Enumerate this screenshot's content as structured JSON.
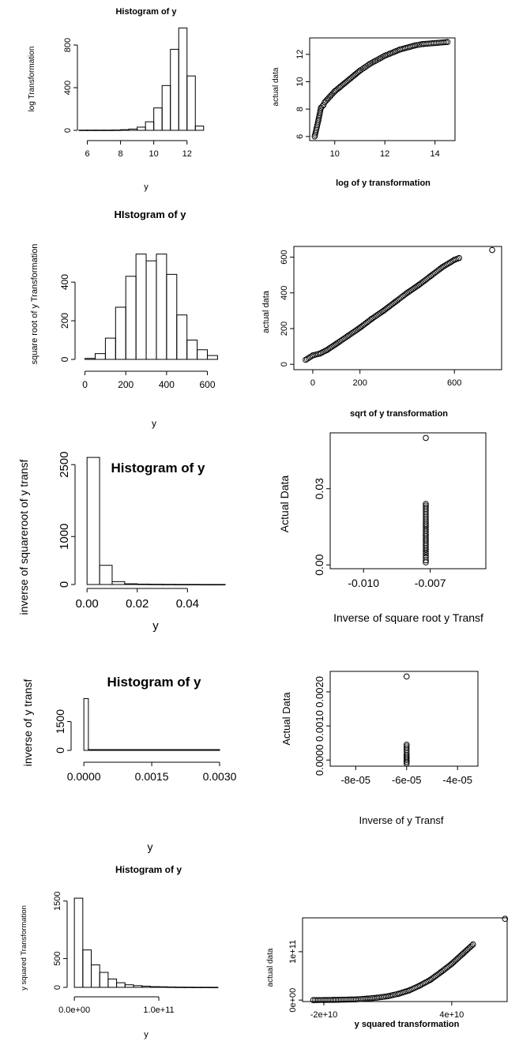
{
  "chart_data": [
    {
      "type": "bar",
      "title": "Histogram of y",
      "xlabel": "y",
      "ylabel": "log Transformation",
      "xticks": [
        "6",
        "8",
        "10",
        "12"
      ],
      "yticks": [
        "0",
        "400",
        "800"
      ],
      "bins": [
        [
          5.5,
          6
        ],
        [
          6,
          6.5
        ],
        [
          6.5,
          7
        ],
        [
          7,
          7.5
        ],
        [
          7.5,
          8
        ],
        [
          8,
          8.5
        ],
        [
          8.5,
          9
        ],
        [
          9,
          9.5
        ],
        [
          9.5,
          10
        ],
        [
          10,
          10.5
        ],
        [
          10.5,
          11
        ],
        [
          11,
          11.5
        ],
        [
          11.5,
          12
        ],
        [
          12,
          12.5
        ],
        [
          12.5,
          13
        ]
      ],
      "values": [
        2,
        2,
        2,
        2,
        3,
        6,
        12,
        30,
        80,
        210,
        420,
        760,
        960,
        510,
        40
      ]
    },
    {
      "type": "scatter",
      "xlabel": "log of y transformation",
      "ylabel": "actual data",
      "xticks": [
        "10",
        "12",
        "14"
      ],
      "yticks": [
        "6",
        "8",
        "10",
        "12"
      ],
      "x": [
        9.2,
        9.35,
        9.45,
        9.55,
        9.6,
        9.7,
        9.85,
        10.0,
        10.2,
        10.4,
        10.6,
        10.8,
        11.0,
        11.2,
        11.4,
        11.6,
        11.8,
        12.0,
        12.2,
        12.4,
        12.6,
        12.8,
        13.0,
        13.2,
        13.5,
        14.5
      ],
      "y": [
        6.0,
        7.2,
        8.1,
        8.3,
        8.5,
        8.7,
        9.0,
        9.3,
        9.6,
        9.9,
        10.2,
        10.5,
        10.8,
        11.05,
        11.3,
        11.5,
        11.7,
        11.9,
        12.05,
        12.2,
        12.35,
        12.45,
        12.55,
        12.65,
        12.75,
        12.9
      ]
    },
    {
      "type": "bar",
      "title": "HIstogram of y",
      "xlabel": "y",
      "ylabel": "square root of y Transformation",
      "xticks": [
        "0",
        "200",
        "400",
        "600"
      ],
      "yticks": [
        "0",
        "200",
        "400"
      ],
      "bins": [
        [
          0,
          50
        ],
        [
          50,
          100
        ],
        [
          100,
          150
        ],
        [
          150,
          200
        ],
        [
          200,
          250
        ],
        [
          250,
          300
        ],
        [
          300,
          350
        ],
        [
          350,
          400
        ],
        [
          400,
          450
        ],
        [
          450,
          500
        ],
        [
          500,
          550
        ],
        [
          550,
          600
        ],
        [
          600,
          650
        ]
      ],
      "values": [
        5,
        30,
        110,
        270,
        430,
        545,
        510,
        545,
        440,
        230,
        100,
        50,
        20
      ]
    },
    {
      "type": "scatter",
      "xlabel": "sqrt of y transformation",
      "ylabel": "actual data",
      "xticks": [
        "0",
        "200",
        "600"
      ],
      "yticks": [
        "0",
        "200",
        "400",
        "600"
      ],
      "x": [
        -30,
        0,
        30,
        60,
        100,
        150,
        200,
        250,
        300,
        350,
        400,
        450,
        500,
        550,
        600,
        620,
        760
      ],
      "y": [
        25,
        50,
        60,
        80,
        115,
        160,
        205,
        255,
        300,
        350,
        400,
        445,
        495,
        545,
        585,
        595,
        640
      ]
    },
    {
      "type": "bar",
      "title": "Histogram of y",
      "xlabel": "y",
      "ylabel": "inverse of squareroot of y transf",
      "xticks": [
        "0.00",
        "0.02",
        "0.04"
      ],
      "yticks": [
        "0",
        "1000",
        "2500"
      ],
      "bins": [
        [
          0,
          0.005
        ],
        [
          0.005,
          0.01
        ],
        [
          0.01,
          0.015
        ],
        [
          0.015,
          0.02
        ],
        [
          0.02,
          0.025
        ],
        [
          0.025,
          0.03
        ],
        [
          0.03,
          0.035
        ],
        [
          0.035,
          0.04
        ],
        [
          0.04,
          0.045
        ],
        [
          0.045,
          0.05
        ],
        [
          0.05,
          0.055
        ]
      ],
      "values": [
        2650,
        400,
        60,
        15,
        8,
        5,
        3,
        2,
        2,
        1,
        1
      ]
    },
    {
      "type": "scatter",
      "xlabel": "Inverse of square root y Transf",
      "ylabel": "Actual Data",
      "xticks": [
        "-0.010",
        "-0.007"
      ],
      "yticks": [
        "0.00",
        "0.03"
      ],
      "x": [
        -0.0072,
        -0.0072,
        -0.0072,
        -0.0072,
        -0.0072,
        -0.0072,
        -0.0072,
        -0.0072,
        -0.0072,
        -0.0072,
        -0.0072,
        -0.0072
      ],
      "y": [
        0.05,
        0.024,
        0.0155,
        0.014,
        0.012,
        0.01,
        0.008,
        0.006,
        0.0045,
        0.003,
        0.0018,
        0.001
      ]
    },
    {
      "type": "bar",
      "title": "Histogram of y",
      "xlabel": "y",
      "ylabel": "inverse of y transf",
      "xticks": [
        "0.0000",
        "0.0015",
        "0.0030"
      ],
      "yticks": [
        "0",
        "1500"
      ],
      "bins": [
        [
          0,
          0.0001
        ],
        [
          0.0001,
          0.003
        ]
      ],
      "values": [
        2700,
        40
      ]
    },
    {
      "type": "scatter",
      "xlabel": "Inverse of y Transf",
      "ylabel": "Actual Data",
      "xticks": [
        "-8e-05",
        "-6e-05",
        "-4e-05"
      ],
      "yticks": [
        "0.0000",
        "0.0010",
        "0.0020"
      ],
      "x": [
        -6e-05,
        -6e-05,
        -6e-05,
        -6e-05,
        -6e-05,
        -6e-05,
        -6e-05,
        -6e-05
      ],
      "y": [
        0.00245,
        0.00045,
        0.00015,
        0.0001,
        5e-05,
        0.0,
        -5e-05,
        -0.0001
      ]
    },
    {
      "type": "bar",
      "title": "Histogram of y",
      "xlabel": "y",
      "ylabel": "y squared Transformation",
      "xticks": [
        "0.0e+00",
        "1.0e+11"
      ],
      "yticks": [
        "0",
        "500",
        "1500"
      ],
      "bins": [
        [
          0,
          10000000000.0
        ],
        [
          10000000000.0,
          20000000000.0
        ],
        [
          20000000000.0,
          30000000000.0
        ],
        [
          30000000000.0,
          40000000000.0
        ],
        [
          40000000000.0,
          50000000000.0
        ],
        [
          50000000000.0,
          60000000000.0
        ],
        [
          60000000000.0,
          70000000000.0
        ],
        [
          70000000000.0,
          80000000000.0
        ],
        [
          80000000000.0,
          90000000000.0
        ],
        [
          90000000000.0,
          100000000000.0
        ],
        [
          100000000000.0,
          110000000000.0
        ],
        [
          110000000000.0,
          120000000000.0
        ],
        [
          120000000000.0,
          130000000000.0
        ],
        [
          130000000000.0,
          140000000000.0
        ],
        [
          140000000000.0,
          150000000000.0
        ],
        [
          150000000000.0,
          160000000000.0
        ],
        [
          160000000000.0,
          170000000000.0
        ]
      ],
      "values": [
        1550,
        650,
        390,
        260,
        145,
        80,
        45,
        30,
        20,
        12,
        10,
        6,
        4,
        3,
        2,
        2,
        1
      ]
    },
    {
      "type": "scatter",
      "xlabel": "y squared transformation",
      "ylabel": "actual data",
      "xticks": [
        "-2e+10",
        "4e+10"
      ],
      "yticks": [
        "0e+00",
        "1e+11"
      ],
      "x": [
        -25000000000.0,
        -15000000000.0,
        -5000000000.0,
        0,
        5000000000.0,
        10000000000.0,
        15000000000.0,
        20000000000.0,
        25000000000.0,
        30000000000.0,
        35000000000.0,
        40000000000.0,
        45000000000.0,
        50000000000.0,
        65000000000.0
      ],
      "y": [
        0,
        500000000.0,
        1500000000.0,
        3000000000.0,
        5000000000.0,
        8000000000.0,
        13000000000.0,
        20000000000.0,
        30000000000.0,
        42000000000.0,
        58000000000.0,
        75000000000.0,
        95000000000.0,
        115000000000.0,
        168000000000.0
      ]
    }
  ]
}
